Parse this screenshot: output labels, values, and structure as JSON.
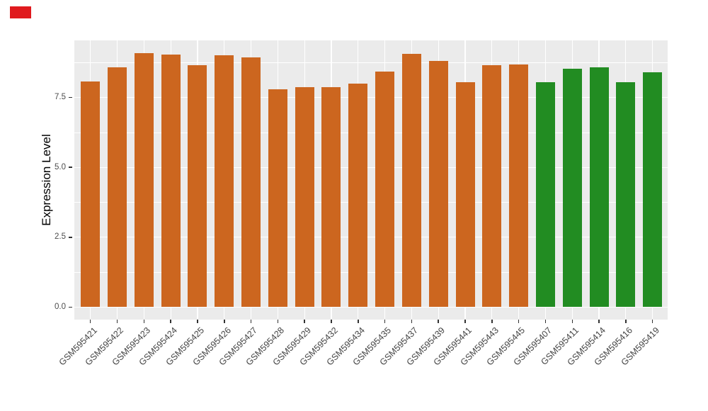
{
  "marker": {
    "name": "red-marker",
    "color": "#E01A1E"
  },
  "panel": {
    "background": "#EBEBEB",
    "grid_color": "#FFFFFF"
  },
  "chart_data": {
    "type": "bar",
    "title": "",
    "xlabel": "",
    "ylabel": "Expression Level",
    "ylim": [
      -0.46,
      9.55
    ],
    "grid": true,
    "legend": "none",
    "ytick_labels": [
      "0.0",
      "2.5",
      "5.0",
      "7.5"
    ],
    "ytick_values": [
      0,
      2.5,
      5.0,
      7.5
    ],
    "ytick_minor_values": [
      1.25,
      3.75,
      6.25,
      8.75
    ],
    "categories": [
      "GSM595421",
      "GSM595422",
      "GSM595423",
      "GSM595424",
      "GSM595425",
      "GSM595426",
      "GSM595427",
      "GSM595428",
      "GSM595429",
      "GSM595432",
      "GSM595434",
      "GSM595435",
      "GSM595437",
      "GSM595439",
      "GSM595441",
      "GSM595443",
      "GSM595445",
      "GSM595407",
      "GSM595411",
      "GSM595414",
      "GSM595416",
      "GSM595419"
    ],
    "values": [
      8.07,
      8.58,
      9.09,
      9.04,
      8.66,
      9.02,
      8.94,
      7.8,
      7.88,
      7.86,
      7.99,
      8.43,
      9.06,
      8.82,
      8.05,
      8.67,
      8.69,
      8.06,
      8.52,
      8.58,
      8.05,
      8.4
    ],
    "groups": [
      "A",
      "A",
      "A",
      "A",
      "A",
      "A",
      "A",
      "A",
      "A",
      "A",
      "A",
      "A",
      "A",
      "A",
      "A",
      "A",
      "A",
      "B",
      "B",
      "B",
      "B",
      "B"
    ],
    "group_colors": {
      "A": "#CC661F",
      "B": "#228C22"
    }
  }
}
